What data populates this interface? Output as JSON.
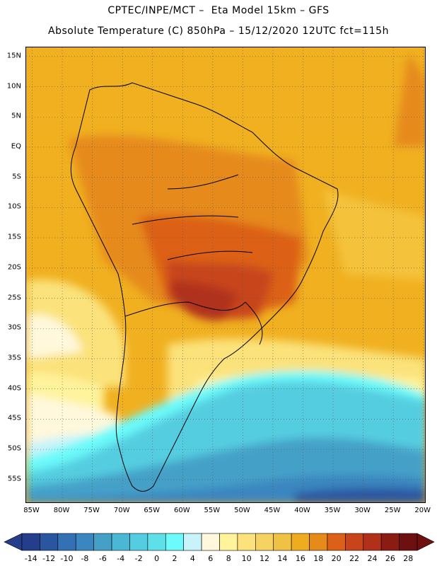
{
  "header": {
    "line1": "CPTEC/INPE/MCT –  Eta Model 15km – GFS",
    "line2": "Absolute Temperature (C) 850hPa – 15/12/2020 12UTC fct=115h"
  },
  "map": {
    "lat_ticks": [
      "15N",
      "10N",
      "5N",
      "EQ",
      "5S",
      "10S",
      "15S",
      "20S",
      "25S",
      "30S",
      "35S",
      "40S",
      "45S",
      "50S",
      "55S"
    ],
    "lat_values": [
      15,
      10,
      5,
      0,
      -5,
      -10,
      -15,
      -20,
      -25,
      -30,
      -35,
      -40,
      -45,
      -50,
      -55
    ],
    "lon_ticks": [
      "85W",
      "80W",
      "75W",
      "70W",
      "65W",
      "60W",
      "55W",
      "50W",
      "45W",
      "40W",
      "35W",
      "30W",
      "25W",
      "20W"
    ],
    "lon_values": [
      -85,
      -80,
      -75,
      -70,
      -65,
      -60,
      -55,
      -50,
      -45,
      -40,
      -35,
      -30,
      -25,
      -20
    ],
    "extent": {
      "lon_min": -86,
      "lon_max": -19.5,
      "lat_min": -59,
      "lat_max": 16.5
    },
    "gridlines": "dotted",
    "land_boundaries": "black country outlines"
  },
  "colorbar": {
    "labels": [
      "-14",
      "-12",
      "-10",
      "-8",
      "-6",
      "-4",
      "-2",
      "0",
      "2",
      "4",
      "6",
      "8",
      "10",
      "12",
      "14",
      "16",
      "18",
      "20",
      "22",
      "24",
      "26",
      "28"
    ],
    "colors": [
      "#243e8c",
      "#2a56a0",
      "#3370b4",
      "#3b86c0",
      "#45a0c8",
      "#4ab8d4",
      "#55cde0",
      "#5ee0ea",
      "#6cfafa",
      "#c8f3fa",
      "#fff8dc",
      "#fff39c",
      "#fbe27a",
      "#f6d262",
      "#f0c243",
      "#f0ac1f",
      "#e68a1a",
      "#dc6018",
      "#c8441a",
      "#b0301a",
      "#8a1c14",
      "#6e1010"
    ],
    "left_cap_color": "#243e8c",
    "right_cap_color": "#6e1010"
  }
}
